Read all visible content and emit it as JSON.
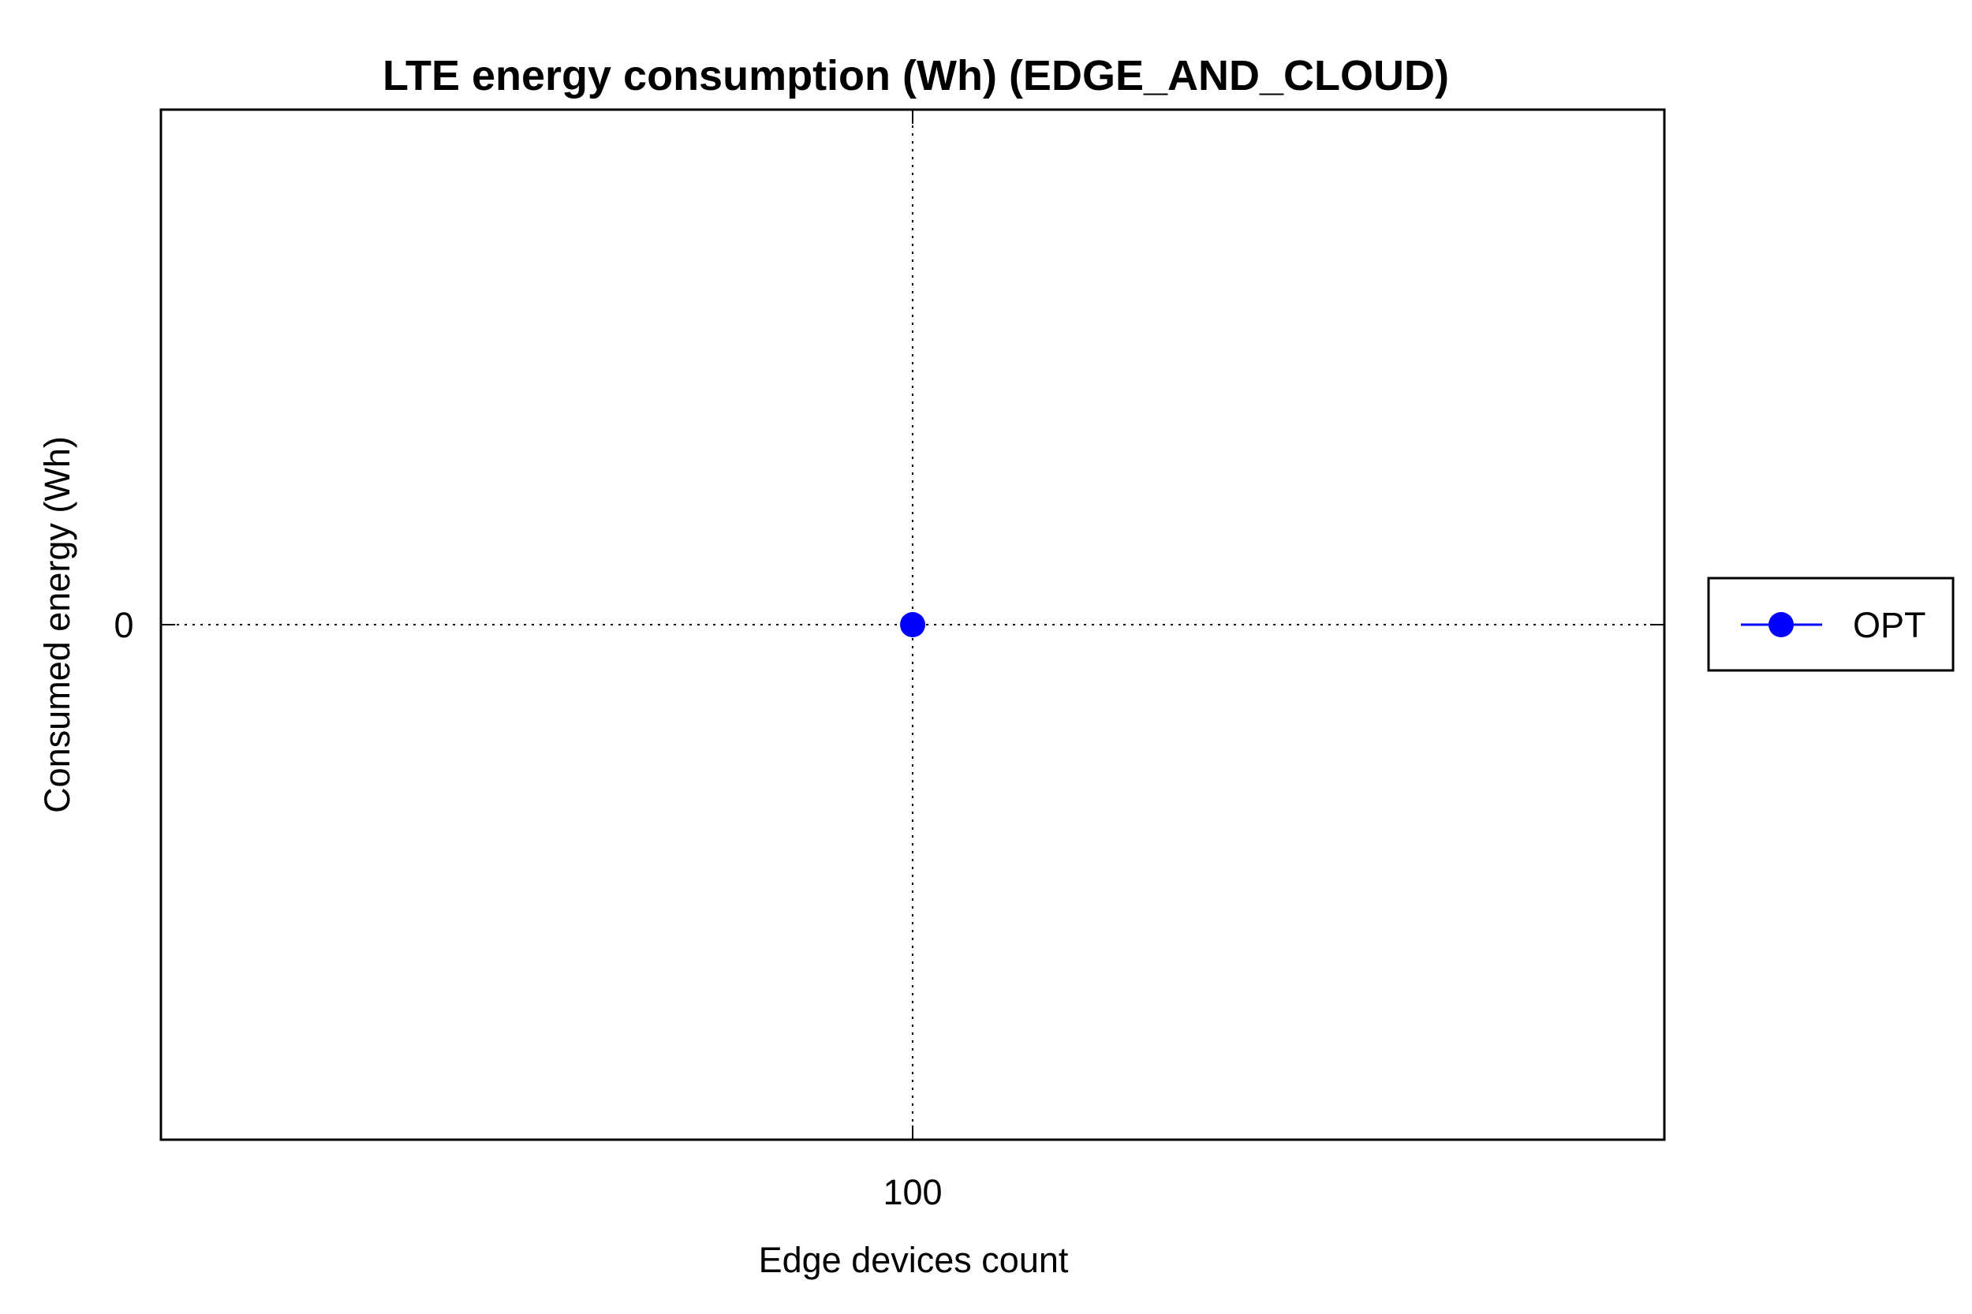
{
  "chart_data": {
    "type": "line",
    "title": "LTE energy consumption (Wh) (EDGE_AND_CLOUD)",
    "xlabel": "Edge devices count",
    "ylabel": "Consumed energy (Wh)",
    "x_ticks": [
      {
        "label": "100",
        "value": 100
      }
    ],
    "y_ticks": [
      {
        "label": "0",
        "value": 0
      }
    ],
    "xlim": [
      99,
      101
    ],
    "ylim": [
      -1,
      1
    ],
    "grid": true,
    "legend_position": "right",
    "series": [
      {
        "name": "OPT",
        "color": "#0000ff",
        "marker": "circle",
        "points": [
          {
            "x": 100,
            "y": 0
          }
        ]
      }
    ]
  }
}
